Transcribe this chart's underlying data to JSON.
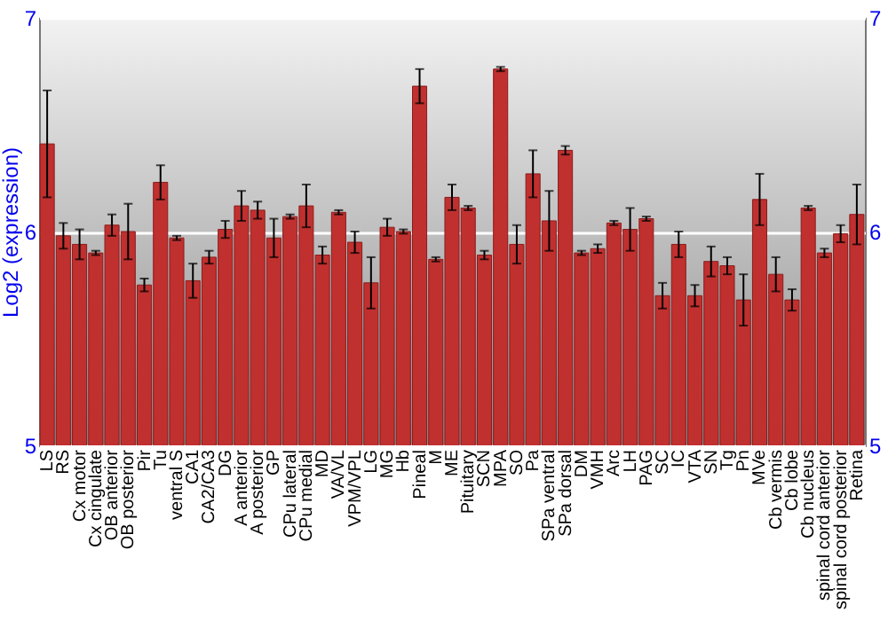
{
  "chart_data": {
    "type": "bar",
    "ylabel": "Log2 (expression)",
    "categories": [
      "LS",
      "RS",
      "Cx motor",
      "Cx cingulate",
      "OB anterior",
      "OB posterior",
      "Pir",
      "Tu",
      "ventral S",
      "CA1",
      "CA2/CA3",
      "DG",
      "A anterior",
      "A posterior",
      "GP",
      "CPu lateral",
      "CPu medial",
      "MD",
      "VA/VL",
      "VPM/VPL",
      "LG",
      "MG",
      "Hb",
      "Pineal",
      "M",
      "ME",
      "Pituitary",
      "SCN",
      "MPA",
      "SO",
      "Pa",
      "SPa ventral",
      "SPa dorsal",
      "DM",
      "VMH",
      "Arc",
      "LH",
      "PAG",
      "SC",
      "IC",
      "VTA",
      "SN",
      "Tg",
      "Pn",
      "MVe",
      "Cb vermis",
      "Cb lobe",
      "Cb nucleus",
      "spinal cord anterior",
      "spinal cord posterior",
      "Retina"
    ],
    "values": [
      6.41,
      5.98,
      5.94,
      5.9,
      6.03,
      6.0,
      5.75,
      6.23,
      5.97,
      5.77,
      5.88,
      6.01,
      6.12,
      6.1,
      5.97,
      6.07,
      6.12,
      5.89,
      6.09,
      5.95,
      5.76,
      6.02,
      6.0,
      6.68,
      5.87,
      6.16,
      6.11,
      5.89,
      6.76,
      5.94,
      6.27,
      6.05,
      6.38,
      5.9,
      5.92,
      6.04,
      6.01,
      6.06,
      5.7,
      5.94,
      5.7,
      5.86,
      5.84,
      5.68,
      6.15,
      5.8,
      5.68,
      6.11,
      5.9,
      5.99,
      6.08
    ],
    "errors": [
      0.25,
      0.06,
      0.07,
      0.01,
      0.05,
      0.13,
      0.03,
      0.08,
      0.01,
      0.08,
      0.03,
      0.04,
      0.07,
      0.04,
      0.09,
      0.01,
      0.1,
      0.04,
      0.01,
      0.05,
      0.12,
      0.04,
      0.01,
      0.08,
      0.01,
      0.06,
      0.01,
      0.02,
      0.01,
      0.09,
      0.11,
      0.14,
      0.02,
      0.01,
      0.02,
      0.01,
      0.1,
      0.01,
      0.06,
      0.06,
      0.05,
      0.07,
      0.04,
      0.12,
      0.12,
      0.08,
      0.05,
      0.01,
      0.02,
      0.04,
      0.14
    ],
    "color": "#c0302f",
    "ylim": [
      5,
      7
    ],
    "yticks": [
      5,
      6,
      7
    ],
    "y2lim": [
      5,
      7
    ],
    "y2ticks": [
      5,
      6,
      7
    ],
    "grid": "y"
  }
}
